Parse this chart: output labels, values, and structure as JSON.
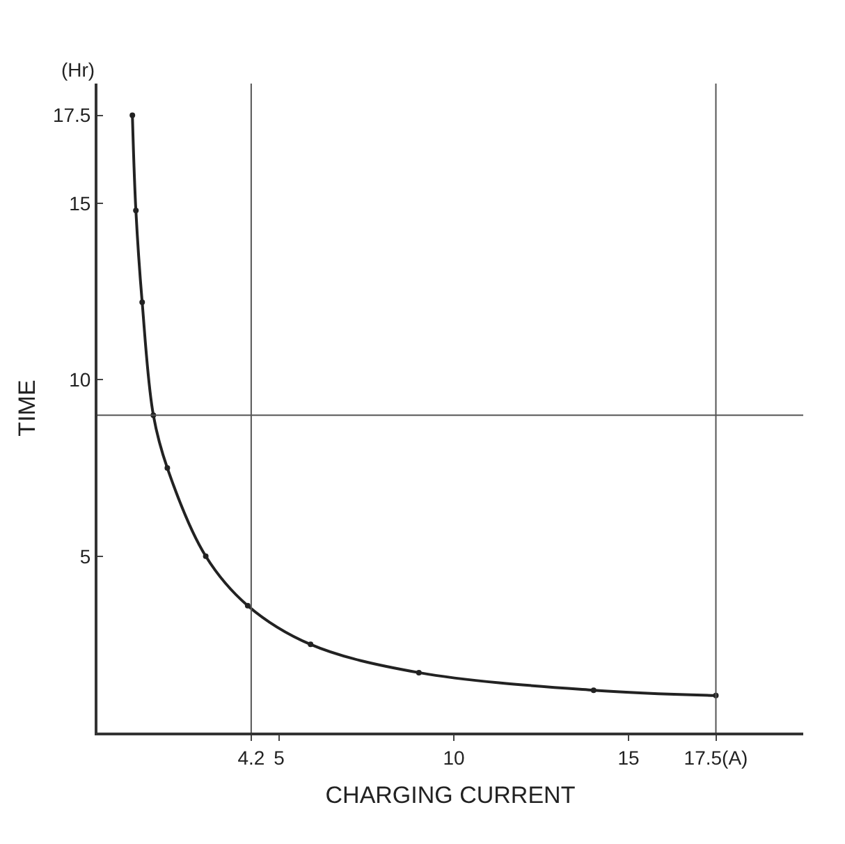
{
  "chart_data": {
    "type": "line",
    "xlabel": "CHARGING CURRENT",
    "ylabel": "TIME",
    "annotations": [
      "(Hr)"
    ],
    "x": [
      0.8,
      0.9,
      1.08,
      1.4,
      1.8,
      2.9,
      4.1,
      5.9,
      9.0,
      14.0,
      17.5
    ],
    "series": [
      {
        "color": "#222222",
        "values": [
          17.5,
          14.8,
          12.2,
          9.0,
          7.5,
          5.0,
          3.6,
          2.5,
          1.7,
          1.2,
          1.05
        ]
      }
    ],
    "xlim": [
      -0.2,
      20
    ],
    "xticks": [
      4.2,
      5,
      10,
      15,
      {
        "value": 17.5,
        "label": "17.5(A)"
      }
    ],
    "ylim": [
      0,
      18.4
    ],
    "yticks": [
      5,
      10,
      15,
      17.5
    ],
    "ref_lines": [
      {
        "axis": "x",
        "value": 4.2,
        "color": "#555555"
      },
      {
        "axis": "x",
        "value": 17.5,
        "color": "#555555"
      },
      {
        "axis": "y",
        "value": 9,
        "color": "#555555"
      }
    ],
    "marker": "circle",
    "line_style": "solid"
  }
}
